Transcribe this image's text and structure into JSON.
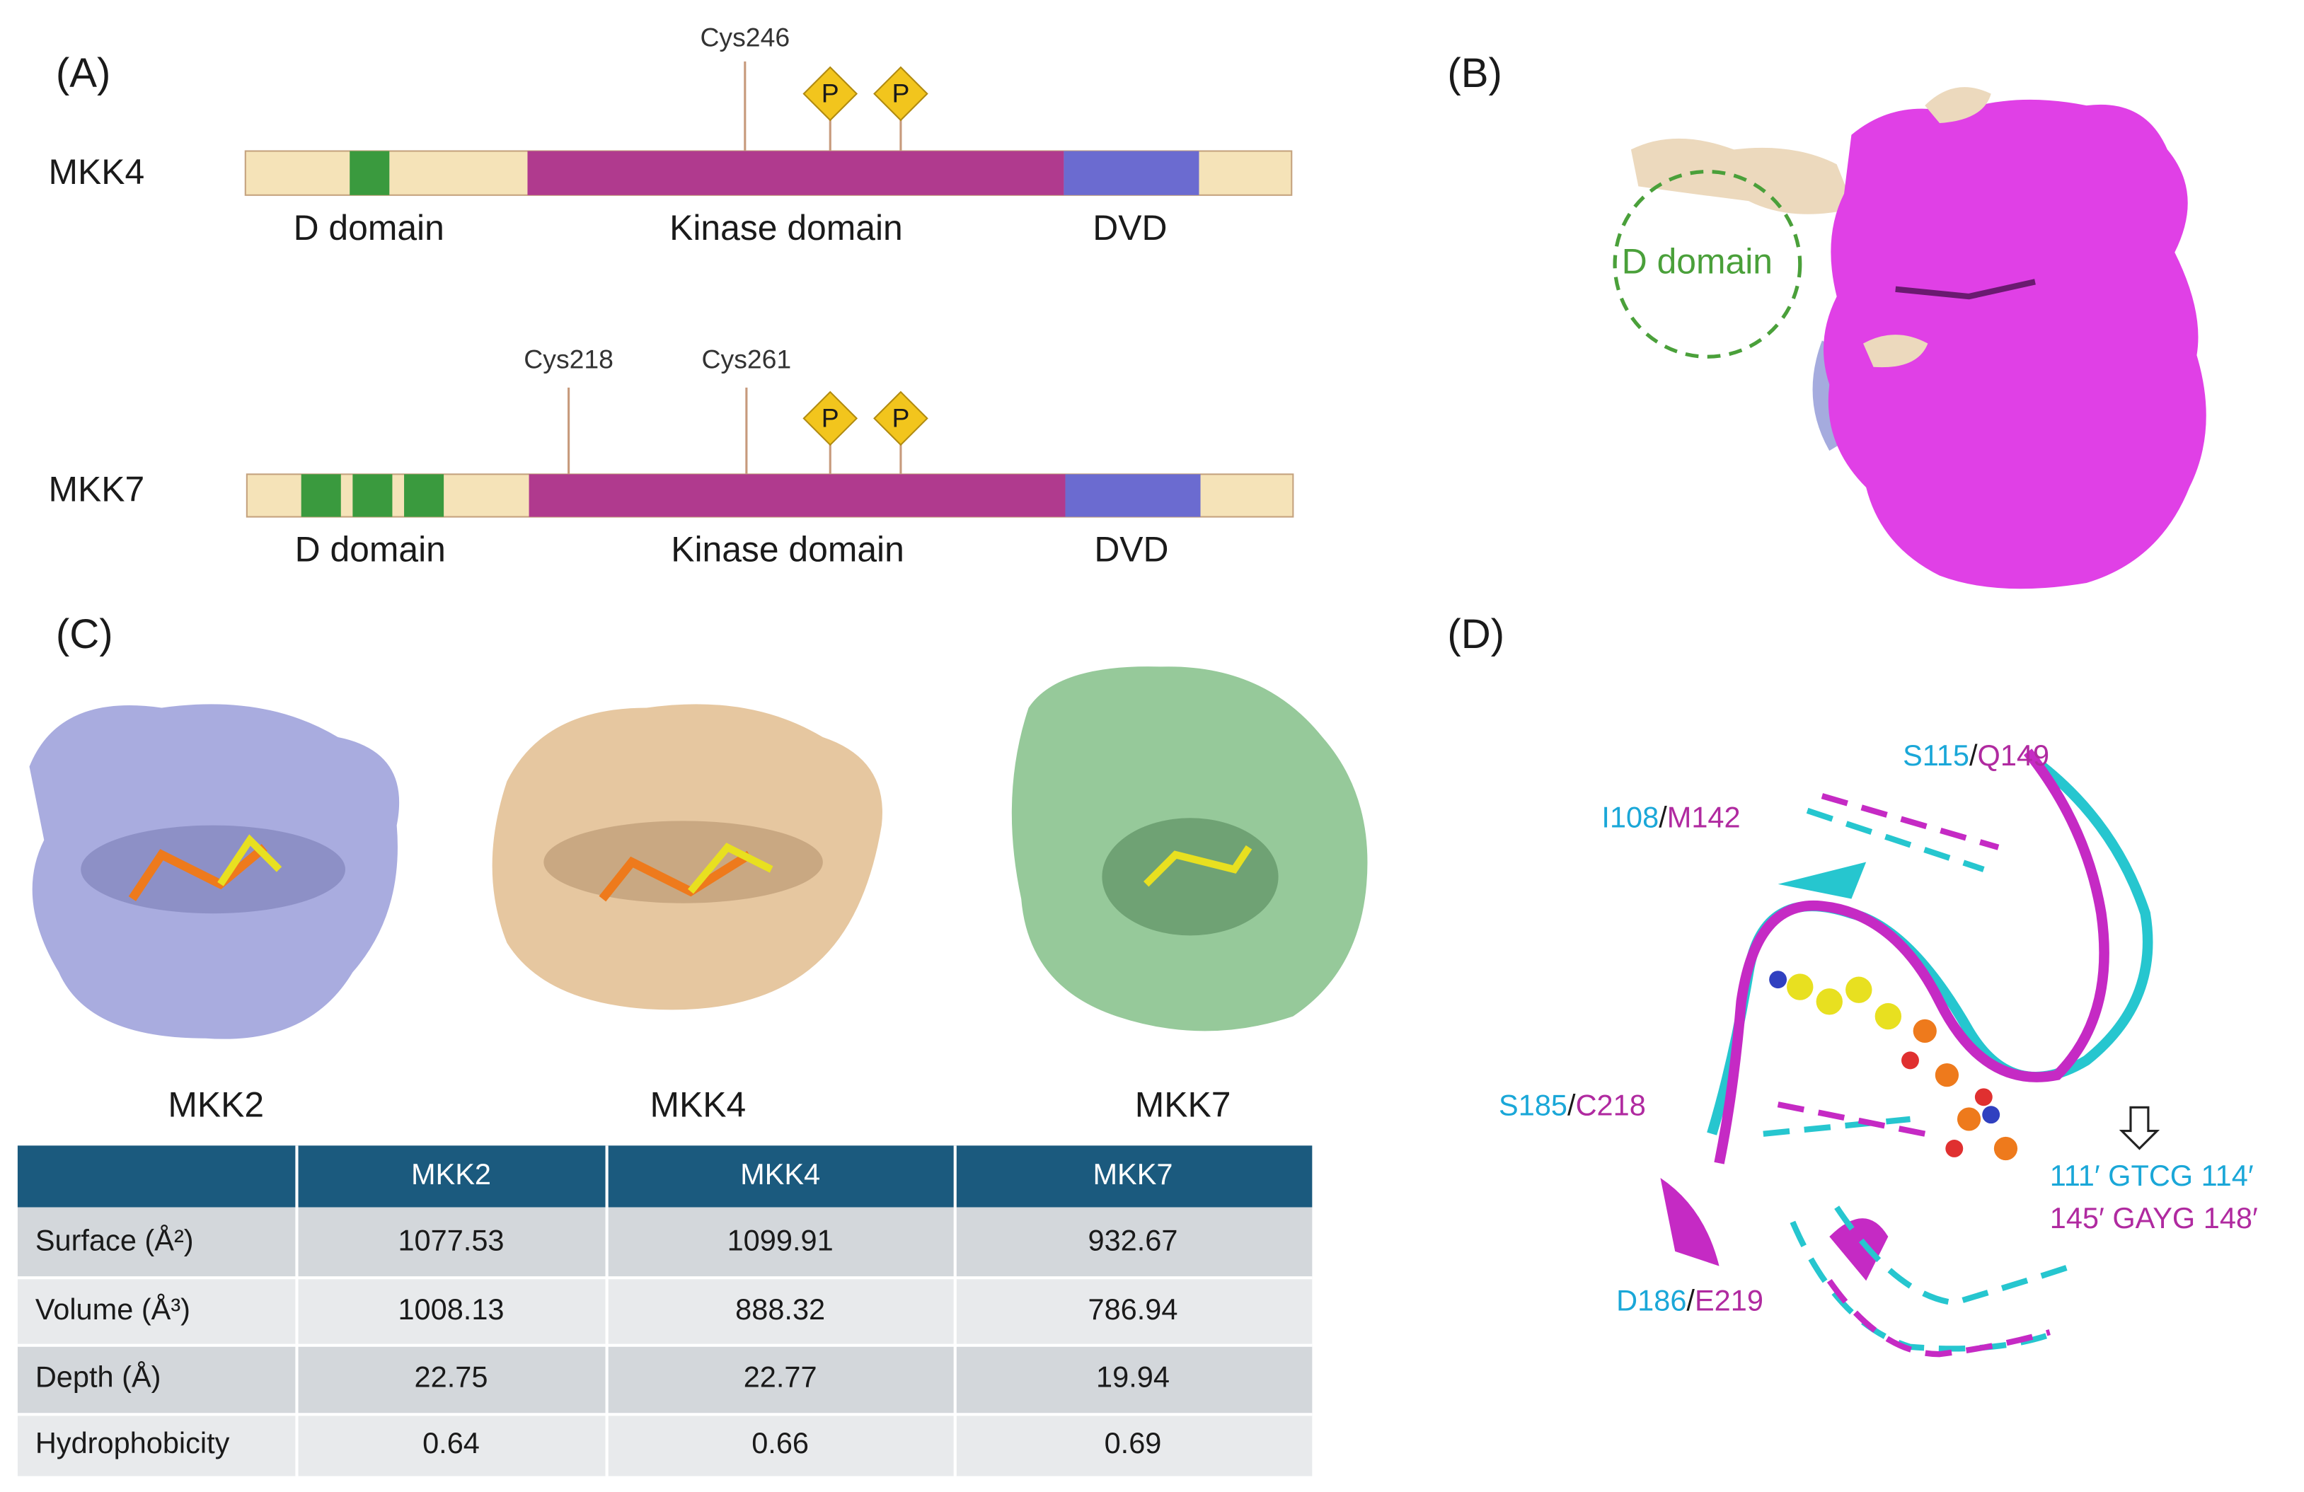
{
  "panels": {
    "a": {
      "label": "(A)",
      "proteins": [
        {
          "name": "MKK4",
          "cysteines": [
            "Cys246"
          ],
          "phospho": [
            "P",
            "P"
          ],
          "domains": [
            "D domain",
            "Kinase domain",
            "DVD"
          ]
        },
        {
          "name": "MKK7",
          "cysteines": [
            "Cys218",
            "Cys261"
          ],
          "phospho": [
            "P",
            "P"
          ],
          "domains": [
            "D domain",
            "Kinase domain",
            "DVD"
          ]
        }
      ]
    },
    "b": {
      "label": "(B)",
      "annotation": "D domain"
    },
    "c": {
      "label": "(C)",
      "structures": [
        "MKK2",
        "MKK4",
        "MKK7"
      ]
    },
    "d": {
      "label": "(D)",
      "separator": "/",
      "residues": [
        {
          "first": "S115",
          "second": "Q149"
        },
        {
          "first": "I108",
          "second": "M142"
        },
        {
          "first": "S185",
          "second": "C218"
        },
        {
          "first": "D186",
          "second": "E219"
        }
      ],
      "motifs": [
        "111′ GTCG 114′",
        "145′ GAYG 148′"
      ]
    }
  },
  "table": {
    "header": [
      "MKK2",
      "MKK4",
      "MKK7"
    ],
    "rows": [
      [
        "Surface (Å²)",
        1077.53,
        1099.91,
        932.67
      ],
      [
        "Volume (Å³)",
        1008.13,
        888.32,
        786.94
      ],
      [
        "Depth (Å)",
        22.75,
        22.77,
        19.94
      ],
      [
        "Hydrophobicity",
        0.64,
        0.66,
        0.69
      ]
    ]
  }
}
